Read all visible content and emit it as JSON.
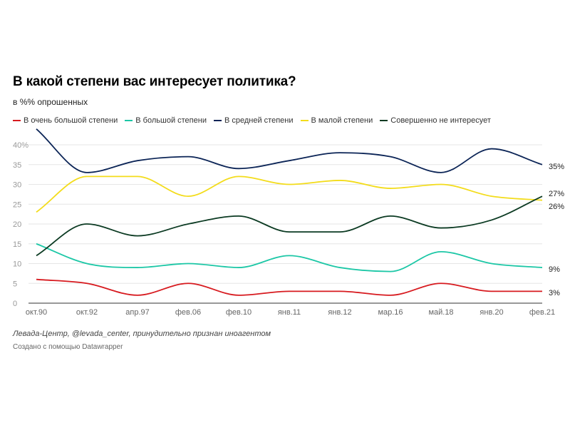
{
  "chart_data": {
    "type": "line",
    "title": "В какой степени вас интересует политика?",
    "subtitle": "в %% опрошенных",
    "categories": [
      "окт.90",
      "окт.92",
      "апр.97",
      "фев.06",
      "фев.10",
      "янв.11",
      "янв.12",
      "мар.16",
      "май.18",
      "янв.20",
      "фев.21"
    ],
    "ylim": [
      0,
      40
    ],
    "yticks": [
      "0",
      "5",
      "10",
      "15",
      "20",
      "25",
      "30",
      "35",
      "40%"
    ],
    "grid": true,
    "legend_position": "top-left",
    "series": [
      {
        "name": "В очень большой степени",
        "color": "#d71a1f",
        "values": [
          6,
          5,
          2,
          5,
          2,
          3,
          3,
          2,
          5,
          3,
          3
        ],
        "end_label": "3%"
      },
      {
        "name": "В большой степени",
        "color": "#1cc7a6",
        "values": [
          15,
          10,
          9,
          10,
          9,
          12,
          9,
          8,
          13,
          10,
          9
        ],
        "end_label": "9%"
      },
      {
        "name": "В средней степени",
        "color": "#0b2456",
        "values": [
          44,
          33,
          36,
          37,
          34,
          36,
          38,
          37,
          33,
          39,
          35
        ],
        "end_label": "35%"
      },
      {
        "name": "В малой степени",
        "color": "#f3dc1b",
        "values": [
          23,
          32,
          32,
          27,
          32,
          30,
          31,
          29,
          30,
          27,
          26
        ],
        "end_label": "26%"
      },
      {
        "name": "Совершенно не интересует",
        "color": "#0b3a22",
        "values": [
          12,
          20,
          17,
          20,
          22,
          18,
          18,
          22,
          19,
          21,
          27
        ],
        "end_label": "27%"
      }
    ]
  },
  "footer": {
    "source": "Левада-Центр, @levada_center, принудительно признан иноагентом",
    "credit": "Создано с помощью Datawrapper"
  }
}
